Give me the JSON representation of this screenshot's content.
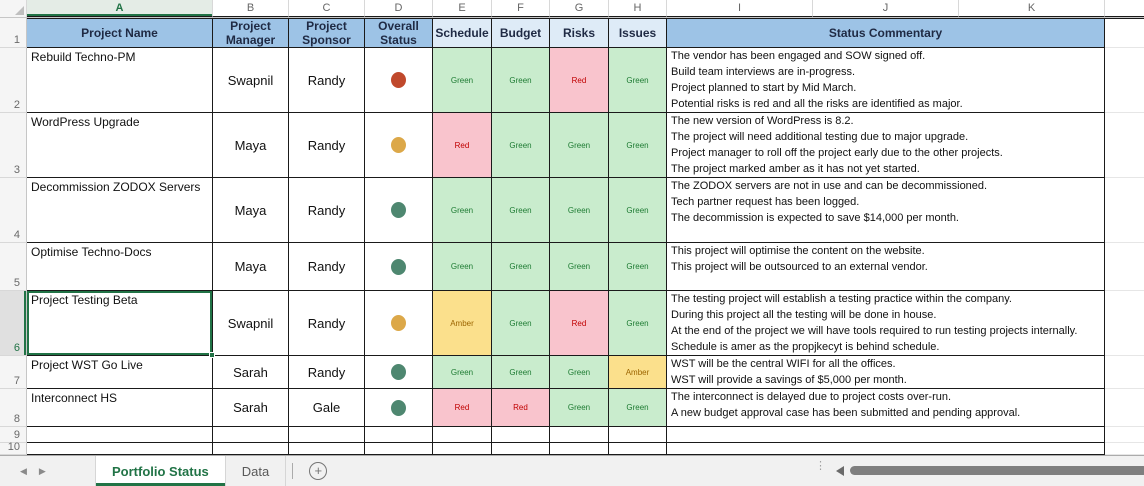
{
  "sheet": {
    "column_letters": [
      "A",
      "B",
      "C",
      "D",
      "E",
      "F",
      "G",
      "H",
      "I",
      "J",
      "K"
    ],
    "selected_column": "A",
    "selected_row": "6",
    "selected_cell": "A6",
    "header_row": {
      "project_name": "Project Name",
      "project_manager": "Project Manager",
      "project_sponsor": "Project Sponsor",
      "overall_status": "Overall Status",
      "schedule": "Schedule",
      "budget": "Budget",
      "risks": "Risks",
      "issues": "Issues",
      "status_commentary": "Status Commentary"
    },
    "projects": [
      {
        "name": "Rebuild Techno-PM",
        "manager": "Swapnil",
        "sponsor": "Randy",
        "overall": "red",
        "schedule": "Green",
        "budget": "Green",
        "risks": "Red",
        "issues": "Green",
        "commentary": [
          "The vendor has been engaged and SOW signed off.",
          "Build team interviews are in-progress.",
          "Project planned to start by Mid March.",
          "Potential risks is red and all the risks are identified as major."
        ]
      },
      {
        "name": "WordPress Upgrade",
        "manager": "Maya",
        "sponsor": "Randy",
        "overall": "amber",
        "schedule": "Red",
        "budget": "Green",
        "risks": "Green",
        "issues": "Green",
        "commentary": [
          "The new version of WordPress is 8.2.",
          "The project will need additional testing due to major upgrade.",
          "Project manager to roll off the project early due to the other projects.",
          "The project marked amber as it has not yet started."
        ]
      },
      {
        "name": "Decommission ZODOX Servers",
        "manager": "Maya",
        "sponsor": "Randy",
        "overall": "green",
        "schedule": "Green",
        "budget": "Green",
        "risks": "Green",
        "issues": "Green",
        "commentary": [
          "The ZODOX servers are not in use and can be decommissioned.",
          "Tech partner request has been logged.",
          "The decommission is expected to save $14,000 per month."
        ]
      },
      {
        "name": "Optimise Techno-Docs",
        "manager": "Maya",
        "sponsor": "Randy",
        "overall": "green",
        "schedule": "Green",
        "budget": "Green",
        "risks": "Green",
        "issues": "Green",
        "commentary": [
          "This project will optimise the content on the website.",
          "This project will be outsourced to an external vendor."
        ]
      },
      {
        "name": "Project Testing Beta",
        "manager": "Swapnil",
        "sponsor": "Randy",
        "overall": "amber",
        "schedule": "Amber",
        "budget": "Green",
        "risks": "Red",
        "issues": "Green",
        "commentary": [
          "The testing project will establish a testing practice within the company.",
          "During this project all the testing will be done in house.",
          "At the end of the project we will have tools required to run testing projects internally.",
          "Schedule is amer as the propjkecyt is behind schedule."
        ]
      },
      {
        "name": "Project WST Go Live",
        "manager": "Sarah",
        "sponsor": "Randy",
        "overall": "green",
        "schedule": "Green",
        "budget": "Green",
        "risks": "Green",
        "issues": "Amber",
        "commentary": [
          "WST will be the central WIFI for all the offices.",
          "WST will provide a savings of $5,000 per month."
        ]
      },
      {
        "name": "Interconnect HS",
        "manager": "Sarah",
        "sponsor": "Gale",
        "overall": "green",
        "schedule": "Red",
        "budget": "Red",
        "risks": "Green",
        "issues": "Green",
        "commentary": [
          "The interconnect is delayed due to project costs over-run.",
          "A new budget approval case has been submitted and pending approval."
        ]
      }
    ],
    "row_numbers": [
      "1",
      "2",
      "3",
      "4",
      "5",
      "6",
      "7",
      "8",
      "9",
      "10"
    ]
  },
  "tab_bar": {
    "tabs": [
      {
        "label": "Portfolio Status",
        "active": true
      },
      {
        "label": "Data",
        "active": false
      }
    ],
    "add_sheet_label": "+"
  },
  "colors": {
    "header_blue": "#9DC3E6",
    "header_light_blue": "#DEEBF7",
    "status_green_bg": "#C9ECCD",
    "status_green_text": "#1E7B33",
    "status_red_bg": "#F9C4CD",
    "status_red_text": "#C00000",
    "status_amber_bg": "#FBE08C",
    "status_amber_text": "#9C6500",
    "circle_red": "#C0492C",
    "circle_amber": "#DCA849",
    "circle_green": "#4E8770",
    "selection_green": "#217346"
  }
}
